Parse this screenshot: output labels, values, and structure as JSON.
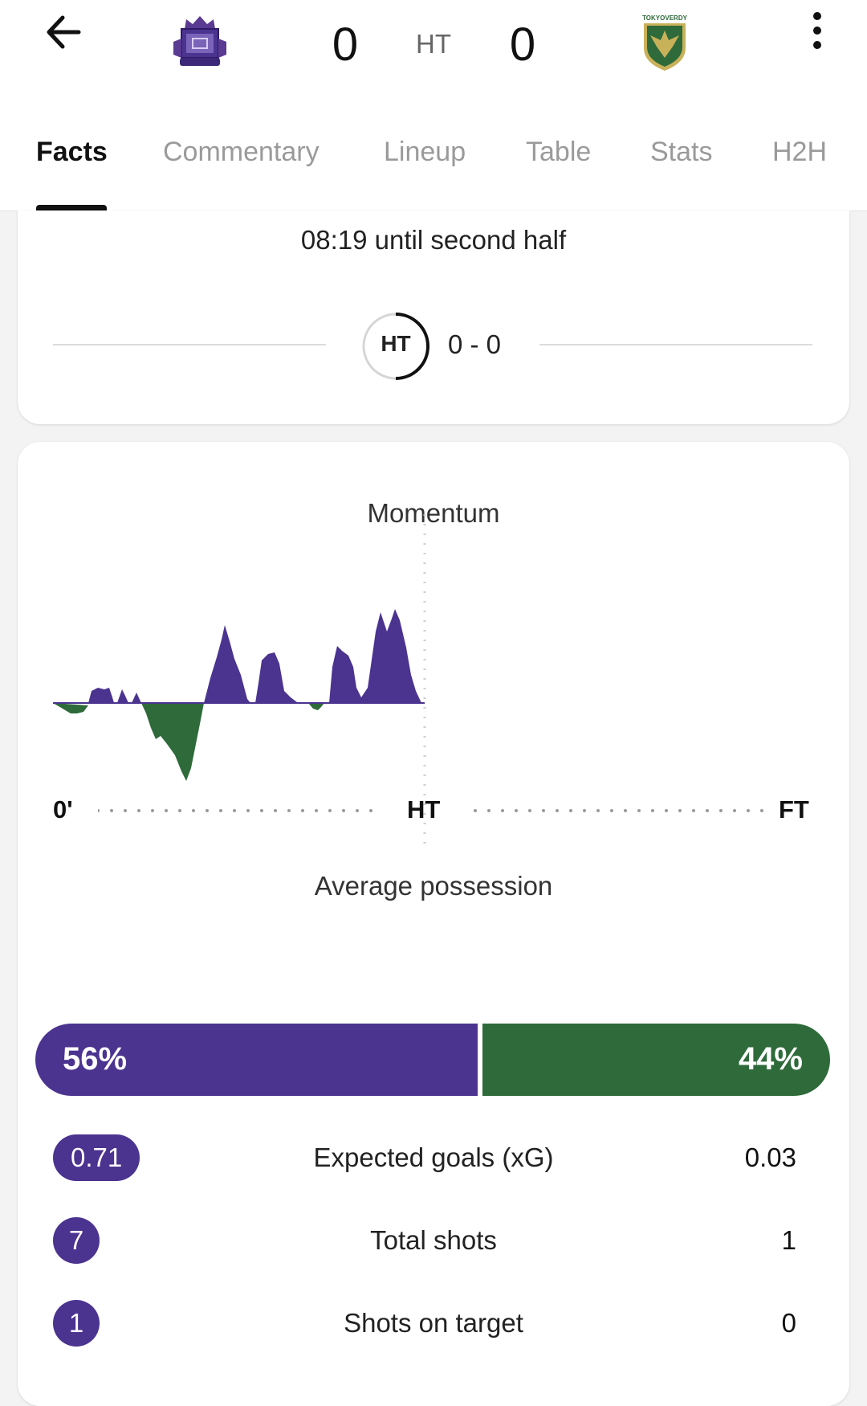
{
  "match": {
    "home_score": "0",
    "away_score": "0",
    "status": "HT",
    "home_crest_icon": "sanfrecce-hiroshima-crest",
    "away_crest_icon": "tokyo-verdy-crest",
    "away_crest_text": "TOKYOVERDY",
    "home_color": "#4b3390",
    "away_color": "#2e6a3a"
  },
  "tabs": [
    {
      "label": "Facts",
      "active": true
    },
    {
      "label": "Commentary",
      "active": false
    },
    {
      "label": "Lineup",
      "active": false
    },
    {
      "label": "Table",
      "active": false
    },
    {
      "label": "Stats",
      "active": false
    },
    {
      "label": "H2H",
      "active": false
    }
  ],
  "halftime": {
    "countdown": "08:19 until second half",
    "badge": "HT",
    "score": "0 - 0"
  },
  "momentum": {
    "title": "Momentum",
    "axis_start": "0'",
    "axis_mid": "HT",
    "axis_end": "FT"
  },
  "possession": {
    "title": "Average possession",
    "home": "56%",
    "away": "44%",
    "home_value": 56,
    "away_value": 44
  },
  "stats": [
    {
      "label": "Expected goals (xG)",
      "home": "0.71",
      "away": "0.03"
    },
    {
      "label": "Total shots",
      "home": "7",
      "away": "1"
    },
    {
      "label": "Shots on target",
      "home": "1",
      "away": "0"
    }
  ]
}
